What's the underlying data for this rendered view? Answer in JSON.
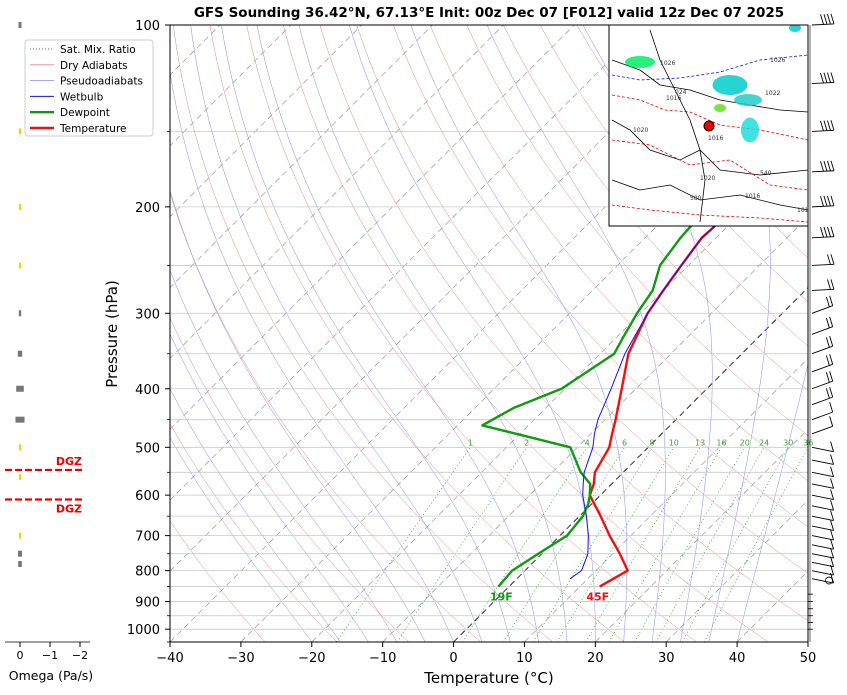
{
  "chart_data": {
    "type": "line",
    "title": "GFS Sounding 36.42°N, 67.13°E Init: 00z Dec 07 [F012] valid 12z Dec 07 2025",
    "xlabel": "Temperature (°C)",
    "ylabel": "Pressure (hPa)",
    "xlim": [
      -40,
      50
    ],
    "ylim": [
      1050,
      100
    ],
    "y_scale": "log",
    "grid": true,
    "legend_position": "top-left",
    "x_ticks": [
      "−40",
      "−30",
      "−20",
      "−10",
      "0",
      "10",
      "20",
      "30",
      "40",
      "50"
    ],
    "y_ticks": [
      "100",
      "200",
      "300",
      "400",
      "500",
      "600",
      "700",
      "800",
      "900",
      "1000"
    ],
    "legend": [
      "Sat. Mix. Ratio",
      "Dry Adiabats",
      "Pseudoadiabats",
      "Wetbulb",
      "Dewpoint",
      "Temperature"
    ],
    "mixing_ratio_labels": [
      "1",
      "2",
      "4",
      "6",
      "8",
      "10",
      "13",
      "16",
      "20",
      "24",
      "30",
      "36"
    ],
    "series": [
      {
        "name": "Temperature",
        "color": "#ee1111",
        "points": [
          [
            12.8,
            850
          ],
          [
            14.5,
            800
          ],
          [
            11,
            750
          ],
          [
            7,
            700
          ],
          [
            3,
            650
          ],
          [
            -1.5,
            600
          ],
          [
            -2.5,
            575
          ],
          [
            -4,
            550
          ],
          [
            -5.5,
            500
          ],
          [
            -7,
            475
          ],
          [
            -8.5,
            450
          ],
          [
            -12,
            400
          ],
          [
            -16,
            350
          ],
          [
            -19,
            300
          ],
          [
            -20,
            275
          ],
          [
            -21,
            250
          ],
          [
            -22,
            225
          ],
          [
            -21.5,
            200
          ],
          [
            -18,
            175
          ],
          [
            -14,
            160
          ],
          [
            -9.5,
            150
          ],
          [
            -6,
            140
          ],
          [
            -1,
            125
          ],
          [
            5,
            100
          ]
        ]
      },
      {
        "name": "Dewpoint",
        "color": "#119911",
        "points": [
          [
            -1.5,
            850
          ],
          [
            -1.8,
            800
          ],
          [
            -0.5,
            750
          ],
          [
            1,
            700
          ],
          [
            0.5,
            650
          ],
          [
            -0.5,
            620
          ],
          [
            -1.5,
            600
          ],
          [
            -3,
            575
          ],
          [
            -6,
            550
          ],
          [
            -11,
            500
          ],
          [
            -26.5,
            460
          ],
          [
            -24.5,
            430
          ],
          [
            -20.5,
            400
          ],
          [
            -18,
            350
          ],
          [
            -19,
            330
          ],
          [
            -20.5,
            300
          ],
          [
            -21.5,
            275
          ],
          [
            -24,
            250
          ],
          [
            -25,
            225
          ],
          [
            -25.5,
            200
          ],
          [
            -26.5,
            170
          ],
          [
            -27.5,
            150
          ],
          [
            -23,
            125
          ],
          [
            -19,
            100
          ]
        ]
      },
      {
        "name": "Wetbulb",
        "color": "#1111ee",
        "points": [
          [
            7.5,
            825
          ],
          [
            8,
            800
          ],
          [
            6.5,
            750
          ],
          [
            4,
            700
          ],
          [
            1,
            650
          ],
          [
            -2.5,
            600
          ],
          [
            -4,
            575
          ],
          [
            -5.5,
            550
          ],
          [
            -7.8,
            500
          ],
          [
            -9.5,
            475
          ],
          [
            -11,
            450
          ],
          [
            -13.5,
            400
          ],
          [
            -16.5,
            350
          ],
          [
            -19,
            300
          ],
          [
            -20,
            275
          ],
          [
            -21,
            250
          ],
          [
            -22,
            225
          ],
          [
            -21.5,
            200
          ],
          [
            -18,
            175
          ],
          [
            -14,
            160
          ],
          [
            -9.5,
            150
          ],
          [
            -6,
            140
          ],
          [
            -1,
            125
          ],
          [
            5,
            100
          ]
        ]
      }
    ],
    "surface_labels": {
      "temperature": "45F",
      "dewpoint": "19F"
    },
    "dgz_label": "DGZ",
    "dgz_pressures": [
      545,
      610
    ],
    "omega": {
      "xlabel": "Omega (Pa/s)",
      "ticks": [
        "0",
        "−1",
        "−2"
      ],
      "values": [
        [
          100,
          0.15
        ],
        [
          150,
          0.06
        ],
        [
          200,
          0.06
        ],
        [
          250,
          0.06
        ],
        [
          300,
          0.12
        ],
        [
          350,
          0.22
        ],
        [
          400,
          0.38
        ],
        [
          450,
          0.45
        ],
        [
          500,
          0.06
        ],
        [
          560,
          0.1
        ],
        [
          700,
          0.06
        ],
        [
          750,
          0.2
        ],
        [
          780,
          0.18
        ]
      ]
    },
    "inset_map_labels": [
      "1026",
      "1026",
      "1020",
      "1020",
      "1016",
      "1016",
      "1016",
      "1016",
      "1022",
      "024",
      "580",
      "540"
    ]
  }
}
